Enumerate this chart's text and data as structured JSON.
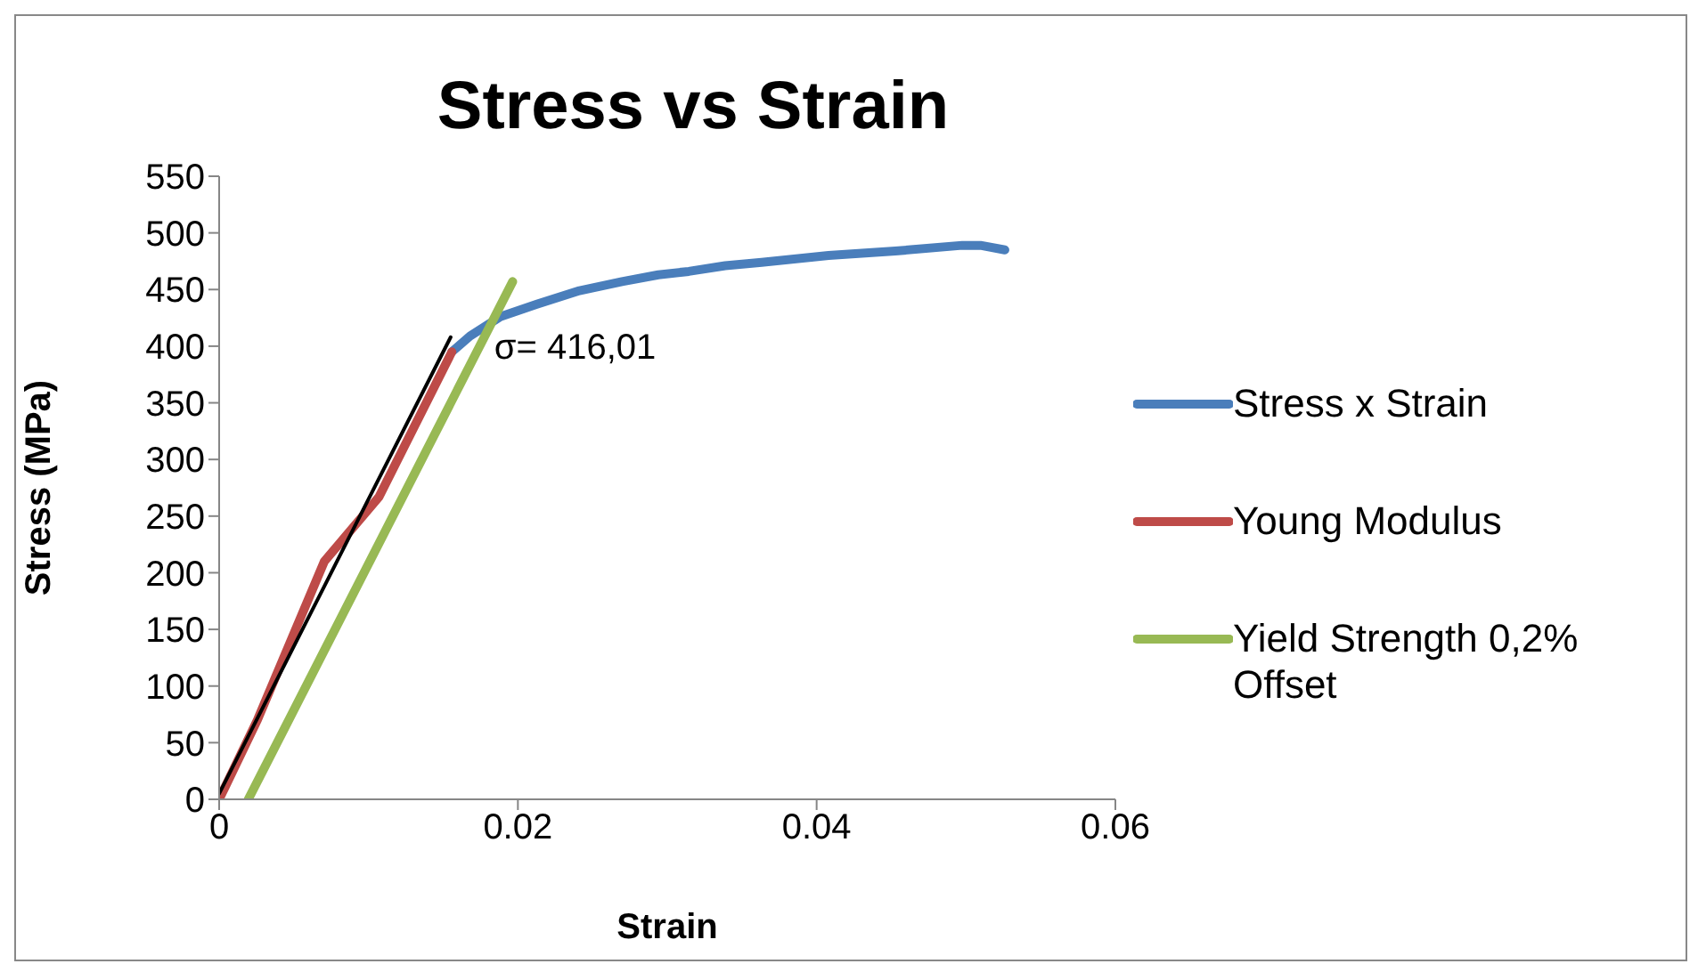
{
  "chart_data": {
    "type": "line",
    "title": "Stress vs Strain",
    "xlabel": "Strain",
    "ylabel": "Stress (MPa)",
    "xlim": [
      0,
      0.06
    ],
    "xticks": [
      {
        "value": 0,
        "label": "0"
      },
      0.02,
      0.04,
      0.06
    ],
    "ylim": [
      0,
      550
    ],
    "yticks": [
      0,
      50,
      100,
      150,
      200,
      250,
      300,
      350,
      400,
      450,
      500,
      550
    ],
    "grid": false,
    "legend": "right",
    "marker": "none",
    "line_style": "solid",
    "annotations": [
      {
        "text": "σ= 416,01",
        "x": 0.0183,
        "y": 416
      }
    ],
    "series": [
      {
        "name": "Stress x Strain",
        "color": "#4a7ebb",
        "x": [
          0.01558,
          0.0168,
          0.01883,
          0.02127,
          0.02412,
          0.02697,
          0.0294,
          0.03144,
          0.03388,
          0.03632,
          0.0408,
          0.04527,
          0.04975,
          0.05097,
          0.0526
        ],
        "values": [
          395,
          409,
          426,
          437,
          449,
          457,
          463,
          466,
          471,
          474,
          480,
          484,
          489,
          489,
          485
        ]
      },
      {
        "name": "Young Modulus",
        "color": "#be4b48",
        "x": [
          0,
          0.00256,
          0.00704,
          0.0107,
          0.01558
        ],
        "values": [
          0,
          70,
          210,
          267,
          395
        ]
      },
      {
        "name": "Yield Strength 0,2% Offset",
        "color": "#98b954",
        "x": [
          0.00195,
          0.01965
        ],
        "values": [
          0,
          457
        ]
      },
      {
        "type": "line",
        "color": "#000000",
        "x": [
          0,
          0.0155
        ],
        "values": [
          5,
          408
        ]
      }
    ]
  }
}
